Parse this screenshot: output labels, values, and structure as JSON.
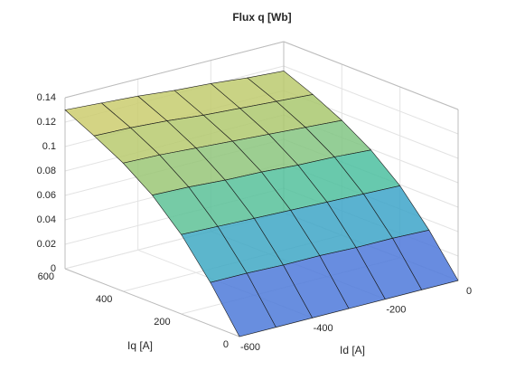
{
  "chart_data": {
    "type": "surface",
    "title": "Flux q [Wb]",
    "xlabel": "Id [A]",
    "ylabel": "Iq [A]",
    "x": [
      -600,
      -500,
      -400,
      -300,
      -200,
      -100,
      0
    ],
    "y": [
      0,
      100,
      200,
      300,
      400,
      500,
      600
    ],
    "z": [
      [
        0,
        0,
        0,
        0,
        0,
        0,
        0
      ],
      [
        0.035,
        0.035,
        0.034,
        0.034,
        0.033,
        0.033,
        0.032
      ],
      [
        0.065,
        0.064,
        0.063,
        0.062,
        0.061,
        0.06,
        0.059
      ],
      [
        0.088,
        0.087,
        0.085,
        0.084,
        0.082,
        0.081,
        0.079
      ],
      [
        0.105,
        0.104,
        0.102,
        0.1,
        0.098,
        0.096,
        0.094
      ],
      [
        0.118,
        0.117,
        0.115,
        0.112,
        0.11,
        0.108,
        0.106
      ],
      [
        0.13,
        0.128,
        0.126,
        0.123,
        0.121,
        0.118,
        0.116
      ]
    ],
    "xlim": [
      -600,
      0
    ],
    "ylim": [
      0,
      600
    ],
    "zlim": [
      0,
      0.14
    ],
    "xticks": [
      -600,
      -400,
      -200,
      0
    ],
    "yticks": [
      0,
      200,
      400,
      600
    ],
    "zticks": [
      0,
      0.02,
      0.04,
      0.06,
      0.08,
      0.1,
      0.12,
      0.14
    ],
    "grid": true
  }
}
